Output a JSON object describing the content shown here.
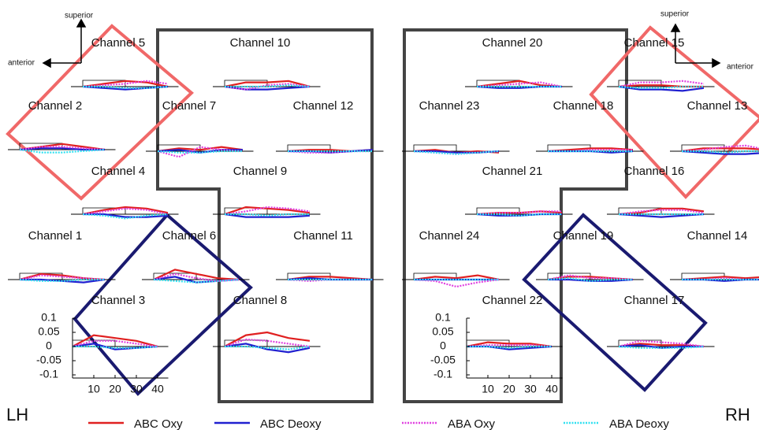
{
  "hemispheres": {
    "left": "LH",
    "right": "RH"
  },
  "orientation": [
    {
      "up": "superior",
      "side": "anterior"
    },
    {
      "up": "superior",
      "side": "anterior"
    }
  ],
  "axis": {
    "x": [
      0,
      10,
      20,
      30,
      40
    ],
    "xlim": [
      0,
      45
    ],
    "xticks": [
      10,
      20,
      30,
      40
    ],
    "ylim": [
      -0.1,
      0.1
    ],
    "yticks": [
      0.1,
      0.05,
      0,
      -0.05,
      -0.1
    ]
  },
  "legend": [
    {
      "name": "ABC Oxy",
      "color": "#e02020",
      "dashed": false
    },
    {
      "name": "ABC Deoxy",
      "color": "#2020d0",
      "dashed": false
    },
    {
      "name": "ABA Oxy",
      "color": "#e040e0",
      "dashed": true
    },
    {
      "name": "ABA Deoxy",
      "color": "#30e0f0",
      "dashed": true
    }
  ],
  "channels": [
    {
      "label": "Channel 5",
      "series": [
        [
          0,
          0.01,
          0.02,
          0.015,
          0
        ],
        [
          0,
          -0.005,
          -0.01,
          -0.005,
          0
        ],
        [
          0,
          0.005,
          0.01,
          0.02,
          0.01
        ],
        [
          0,
          0,
          -0.005,
          -0.005,
          0
        ]
      ]
    },
    {
      "label": "Channel 2",
      "series": [
        [
          0,
          0.01,
          0.02,
          0.01,
          0
        ],
        [
          0,
          0.005,
          0.005,
          0,
          0
        ],
        [
          0,
          0.01,
          0.01,
          0.005,
          0
        ],
        [
          0,
          -0.01,
          -0.01,
          -0.005,
          0
        ]
      ]
    },
    {
      "label": "Channel 7",
      "series": [
        [
          0,
          0.01,
          0.005,
          0.015,
          0.005
        ],
        [
          0,
          0.005,
          -0.005,
          0.005,
          0.005
        ],
        [
          0,
          -0.02,
          0.015,
          0.005,
          0
        ],
        [
          0,
          -0.005,
          -0.005,
          0,
          0
        ]
      ]
    },
    {
      "label": "Channel 10",
      "series": [
        [
          0,
          0.015,
          0.015,
          0.02,
          0
        ],
        [
          0,
          -0.01,
          -0.01,
          -0.005,
          0
        ],
        [
          0,
          -0.01,
          0.005,
          0.01,
          0
        ],
        [
          0,
          0,
          0,
          0.005,
          0
        ]
      ]
    },
    {
      "label": "Channel 12",
      "series": [
        [
          0,
          0.005,
          0.005,
          0,
          0.005
        ],
        [
          0,
          0,
          -0.005,
          0,
          0.005
        ],
        [
          0,
          -0.005,
          -0.005,
          0,
          0
        ],
        [
          0,
          0,
          0,
          0,
          0
        ]
      ]
    },
    {
      "label": "Channel 4",
      "series": [
        [
          0,
          0.015,
          0.025,
          0.02,
          0.005
        ],
        [
          0,
          0,
          -0.01,
          -0.01,
          -0.005
        ],
        [
          0,
          0.01,
          0.02,
          0.015,
          0
        ],
        [
          0,
          -0.005,
          -0.015,
          -0.005,
          0
        ]
      ]
    },
    {
      "label": "Channel 9",
      "series": [
        [
          0,
          0.025,
          0.02,
          0.015,
          0.005
        ],
        [
          0,
          -0.01,
          -0.01,
          -0.01,
          -0.005
        ],
        [
          0,
          0.01,
          0.025,
          0.02,
          0.01
        ],
        [
          0,
          0,
          -0.005,
          0,
          0
        ]
      ]
    },
    {
      "label": "Channel 1",
      "series": [
        [
          0,
          0.02,
          0.015,
          0.005,
          0
        ],
        [
          0,
          0,
          -0.005,
          -0.01,
          0
        ],
        [
          0,
          0.015,
          0.01,
          0.005,
          0
        ],
        [
          0,
          -0.005,
          -0.005,
          0,
          0
        ]
      ]
    },
    {
      "label": "Channel 6",
      "series": [
        [
          0,
          0.035,
          0.02,
          0.005,
          0
        ],
        [
          0,
          0.01,
          -0.01,
          -0.005,
          0
        ],
        [
          0,
          0.02,
          0.005,
          -0.005,
          0
        ],
        [
          0,
          -0.005,
          -0.01,
          -0.005,
          0
        ]
      ]
    },
    {
      "label": "Channel 11",
      "series": [
        [
          0,
          0.01,
          0.01,
          0.005,
          0
        ],
        [
          0,
          0.005,
          0,
          0,
          0
        ],
        [
          0,
          -0.005,
          0,
          0,
          0
        ],
        [
          0,
          0,
          0,
          0,
          0
        ]
      ]
    },
    {
      "label": "Channel 3",
      "series": [
        [
          0,
          0.04,
          0.03,
          0.02,
          0
        ],
        [
          0,
          0.01,
          -0.01,
          -0.005,
          0
        ],
        [
          0,
          0.02,
          0.02,
          0.01,
          0
        ],
        [
          0,
          0,
          -0.005,
          -0.005,
          0
        ]
      ]
    },
    {
      "label": "Channel 8",
      "series": [
        [
          0,
          0.04,
          0.05,
          0.03,
          0.02
        ],
        [
          0,
          0.01,
          -0.01,
          -0.02,
          -0.005
        ],
        [
          0,
          0.025,
          0.02,
          0.01,
          0
        ],
        [
          0,
          0,
          -0.005,
          -0.01,
          0
        ]
      ]
    },
    {
      "label": "Channel 20",
      "series": [
        [
          0,
          0.01,
          0.02,
          0.005,
          0
        ],
        [
          0,
          -0.005,
          -0.005,
          0,
          0
        ],
        [
          0,
          0.005,
          0.01,
          0.015,
          0
        ],
        [
          0,
          0,
          0,
          0,
          0
        ]
      ]
    },
    {
      "label": "Channel 15",
      "series": [
        [
          0,
          0.005,
          0.005,
          0,
          0
        ],
        [
          0,
          -0.01,
          -0.01,
          -0.015,
          -0.005
        ],
        [
          0,
          0.015,
          0.015,
          0.02,
          0.01
        ],
        [
          0,
          -0.005,
          -0.005,
          0,
          0
        ]
      ]
    },
    {
      "label": "Channel 23",
      "series": [
        [
          0,
          0.005,
          -0.005,
          0,
          -0.005
        ],
        [
          0,
          0,
          -0.005,
          -0.005,
          0
        ],
        [
          0,
          -0.005,
          -0.01,
          -0.005,
          0
        ],
        [
          0,
          -0.005,
          -0.01,
          -0.005,
          0
        ]
      ]
    },
    {
      "label": "Channel 18",
      "series": [
        [
          0,
          0.005,
          0.01,
          0.01,
          0.005
        ],
        [
          0,
          0,
          0,
          -0.005,
          0
        ],
        [
          0,
          0,
          0.005,
          0.005,
          0.005
        ],
        [
          0,
          0,
          0,
          0,
          0
        ]
      ]
    },
    {
      "label": "Channel 13",
      "series": [
        [
          0,
          0.01,
          0.01,
          0.01,
          0.005
        ],
        [
          0,
          -0.005,
          -0.01,
          -0.01,
          -0.005
        ],
        [
          0,
          0.005,
          0.015,
          0.02,
          0.005
        ],
        [
          0,
          0,
          -0.005,
          0,
          0
        ]
      ]
    },
    {
      "label": "Channel 21",
      "series": [
        [
          0,
          0.005,
          0.005,
          0.01,
          0.005
        ],
        [
          0,
          -0.005,
          -0.005,
          0,
          0
        ],
        [
          0,
          0.005,
          0.005,
          0.01,
          0.01
        ],
        [
          0,
          0,
          -0.005,
          0,
          0
        ]
      ]
    },
    {
      "label": "Channel 16",
      "series": [
        [
          0,
          0.005,
          0.02,
          0.02,
          0.01
        ],
        [
          0,
          -0.005,
          -0.01,
          -0.005,
          0
        ],
        [
          0,
          0.01,
          0.015,
          0.015,
          0.005
        ],
        [
          0,
          0,
          0,
          0,
          0
        ]
      ]
    },
    {
      "label": "Channel 24",
      "series": [
        [
          0,
          0.01,
          0.005,
          0.015,
          0
        ],
        [
          0,
          0,
          0,
          0,
          0
        ],
        [
          0,
          -0.005,
          -0.025,
          -0.01,
          0
        ],
        [
          0,
          0,
          0,
          0,
          0
        ]
      ]
    },
    {
      "label": "Channel 19",
      "series": [
        [
          0,
          0.01,
          0.01,
          0.005,
          0
        ],
        [
          0,
          0,
          -0.005,
          -0.005,
          0
        ],
        [
          0,
          0.015,
          0.005,
          0.005,
          0
        ],
        [
          0,
          0.005,
          -0.005,
          0,
          0
        ]
      ]
    },
    {
      "label": "Channel 14",
      "series": [
        [
          0,
          0.005,
          0.01,
          0.005,
          0.01
        ],
        [
          0,
          0,
          -0.005,
          0,
          0
        ],
        [
          0,
          0,
          0.005,
          0,
          0
        ],
        [
          0,
          0,
          0,
          0,
          0
        ]
      ]
    },
    {
      "label": "Channel 22",
      "series": [
        [
          0,
          0.015,
          0.01,
          0.01,
          0
        ],
        [
          0,
          0,
          -0.01,
          -0.005,
          0
        ],
        [
          0,
          0.005,
          0.005,
          0.005,
          0
        ],
        [
          0,
          0,
          -0.005,
          0,
          0
        ]
      ]
    },
    {
      "label": "Channel 17",
      "series": [
        [
          0,
          0.01,
          0.005,
          0.005,
          0
        ],
        [
          0,
          0.005,
          -0.005,
          0,
          0
        ],
        [
          0,
          0.02,
          0.015,
          0.01,
          0
        ],
        [
          0,
          -0.005,
          -0.005,
          -0.005,
          0
        ]
      ]
    }
  ]
}
